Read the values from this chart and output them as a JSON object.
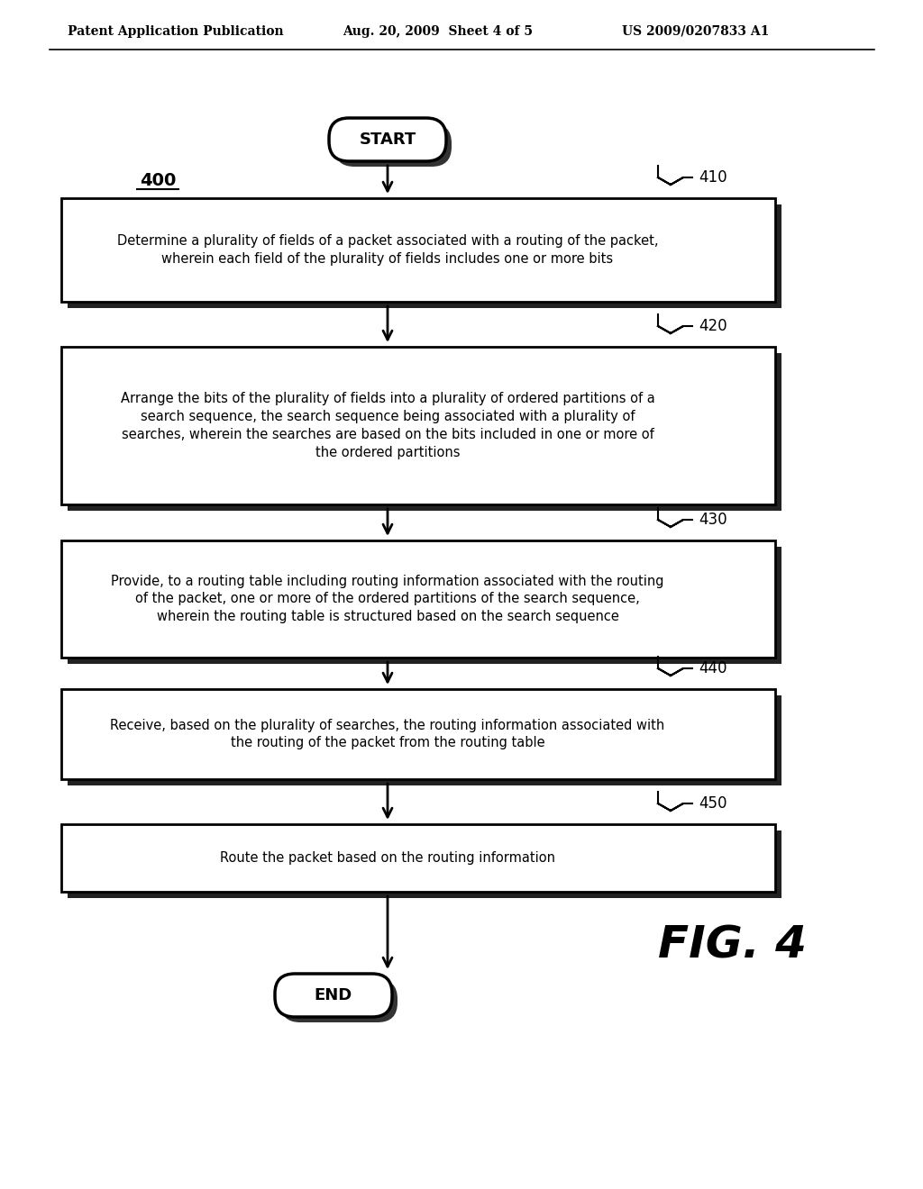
{
  "header_left": "Patent Application Publication",
  "header_mid": "Aug. 20, 2009  Sheet 4 of 5",
  "header_right": "US 2009/0207833 A1",
  "fig_label": "FIG. 4",
  "diagram_label": "400",
  "start_label": "START",
  "end_label": "END",
  "steps": [
    {
      "id": "410",
      "text": "Determine a plurality of fields of a packet associated with a routing of the packet,\nwherein each field of the plurality of fields includes one or more bits"
    },
    {
      "id": "420",
      "text": "Arrange the bits of the plurality of fields into a plurality of ordered partitions of a\nsearch sequence, the search sequence being associated with a plurality of\nsearches, wherein the searches are based on the bits included in one or more of\nthe ordered partitions"
    },
    {
      "id": "430",
      "text": "Provide, to a routing table including routing information associated with the routing\nof the packet, one or more of the ordered partitions of the search sequence,\nwherein the routing table is structured based on the search sequence"
    },
    {
      "id": "440",
      "text": "Receive, based on the plurality of searches, the routing information associated with\nthe routing of the packet from the routing table"
    },
    {
      "id": "450",
      "text": "Route the packet based on the routing information"
    }
  ],
  "bg_color": "#ffffff",
  "box_facecolor": "#ffffff",
  "box_edgecolor": "#000000",
  "text_color": "#000000",
  "arrow_color": "#000000",
  "header_color": "#000000"
}
